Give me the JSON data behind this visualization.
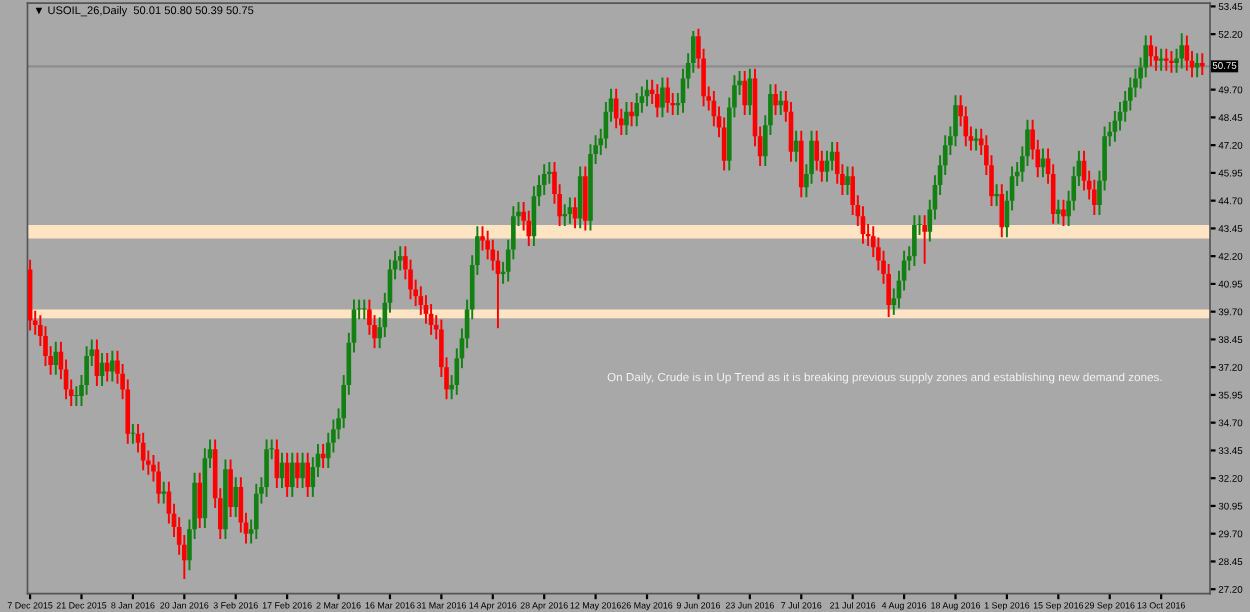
{
  "chart_data": {
    "type": "candlestick",
    "title": "▼ USOIL_26,Daily  50.01 50.80 50.39 50.75",
    "annotations": [
      "On Daily, Crude is in Up Trend as it is breaking previous supply zones and establishing new demand zones."
    ],
    "colors": [
      "#ff0000",
      "#ff0000",
      "#ff0000",
      "#ff0000",
      "#ff0000",
      "#128012",
      "#ff0000",
      "#ff0000",
      "#ff0000",
      "#128012",
      "#128012",
      "#128012",
      "#128012",
      "#ff0000",
      "#128012",
      "#ff0000",
      "#128012",
      "#ff0000",
      "#ff0000",
      "#ff0000",
      "#128012",
      "#ff0000",
      "#ff0000",
      "#ff0000",
      "#ff0000",
      "#ff0000",
      "#128012",
      "#ff0000",
      "#ff0000",
      "#ff0000",
      "#ff0000",
      "#128012",
      "#128012",
      "#ff0000",
      "#128012",
      "#128012",
      "#ff0000",
      "#ff0000",
      "#128012",
      "#ff0000",
      "#128012",
      "#ff0000",
      "#ff0000",
      "#128012",
      "#128012",
      "#128012",
      "#128012",
      "#128012",
      "#ff0000",
      "#128012",
      "#ff0000",
      "#128012",
      "#ff0000",
      "#128012",
      "#ff0000",
      "#128012",
      "#128012",
      "#ff0000",
      "#128012",
      "#128012",
      "#128012",
      "#128012",
      "#128012",
      "#128012",
      "#128012",
      "#128012",
      "#ff0000",
      "#ff0000",
      "#128012",
      "#128012",
      "#128012",
      "#128012",
      "#128012",
      "#ff0000",
      "#ff0000",
      "#ff0000",
      "#ff0000",
      "#ff0000",
      "#ff0000",
      "#ff0000",
      "#ff0000",
      "#ff0000",
      "#128012",
      "#128012",
      "#128012",
      "#128012",
      "#128012",
      "#128012",
      "#ff0000",
      "#ff0000",
      "#ff0000",
      "#ff0000",
      "#128012",
      "#128012",
      "#128012",
      "#128012",
      "#ff0000",
      "#ff0000",
      "#128012",
      "#128012",
      "#128012",
      "#128012",
      "#ff0000",
      "#ff0000",
      "#128012",
      "#128012",
      "#ff0000",
      "#128012",
      "#ff0000",
      "#128012",
      "#128012",
      "#128012",
      "#128012",
      "#128012",
      "#ff0000",
      "#ff0000",
      "#128012",
      "#ff0000",
      "#128012",
      "#128012",
      "#128012",
      "#ff0000",
      "#ff0000",
      "#128012",
      "#ff0000",
      "#ff0000",
      "#128012",
      "#128012",
      "#128012",
      "#128012",
      "#ff0000",
      "#ff0000",
      "#ff0000",
      "#ff0000",
      "#ff0000",
      "#ff0000",
      "#128012",
      "#128012",
      "#128012",
      "#ff0000",
      "#128012",
      "#ff0000",
      "#ff0000",
      "#128012",
      "#128012",
      "#ff0000",
      "#128012",
      "#ff0000",
      "#ff0000",
      "#128012",
      "#ff0000",
      "#128012",
      "#128012",
      "#ff0000",
      "#ff0000",
      "#128012",
      "#128012",
      "#ff0000",
      "#ff0000",
      "#128012",
      "#ff0000",
      "#ff0000",
      "#ff0000",
      "#ff0000",
      "#ff0000",
      "#ff0000",
      "#ff0000",
      "#ff0000",
      "#128012",
      "#128012",
      "#128012",
      "#128012",
      "#128012",
      "#128012",
      "#ff0000",
      "#128012",
      "#128012",
      "#128012",
      "#128012",
      "#128012",
      "#128012",
      "#ff0000",
      "#ff0000",
      "#ff0000",
      "#128012",
      "#ff0000",
      "#ff0000",
      "#ff0000",
      "#128012",
      "#ff0000",
      "#128012",
      "#128012",
      "#128012",
      "#128012",
      "#128012",
      "#ff0000",
      "#ff0000",
      "#128012",
      "#ff0000",
      "#ff0000",
      "#128012",
      "#ff0000",
      "#128012",
      "#128012",
      "#128012",
      "#ff0000",
      "#ff0000",
      "#ff0000",
      "#128012",
      "#128012",
      "#128012",
      "#128012",
      "#128012",
      "#128012",
      "#128012",
      "#128012",
      "#128012",
      "#128012",
      "#ff0000",
      "#ff0000",
      "#128012",
      "#ff0000",
      "#ff0000",
      "#128012",
      "#128012",
      "#ff0000",
      "#ff0000",
      "#128012",
      "#ff0000"
    ],
    "categories": [
      "7 Dec 2015",
      null,
      null,
      null,
      null,
      null,
      null,
      null,
      null,
      null,
      "21 Dec 2015",
      null,
      null,
      null,
      null,
      null,
      null,
      null,
      null,
      null,
      "8 Jan 2016",
      null,
      null,
      null,
      null,
      null,
      null,
      null,
      null,
      null,
      "20 Jan 2016",
      null,
      null,
      null,
      null,
      null,
      null,
      null,
      null,
      null,
      "3 Feb 2016",
      null,
      null,
      null,
      null,
      null,
      null,
      null,
      null,
      null,
      "17 Feb 2016",
      null,
      null,
      null,
      null,
      null,
      null,
      null,
      null,
      null,
      "2 Mar 2016",
      null,
      null,
      null,
      null,
      null,
      null,
      null,
      null,
      null,
      "16 Mar 2016",
      null,
      null,
      null,
      null,
      null,
      null,
      null,
      null,
      null,
      "31 Mar 2016",
      null,
      null,
      null,
      null,
      null,
      null,
      null,
      null,
      null,
      "14 Apr 2016",
      null,
      null,
      null,
      null,
      null,
      null,
      null,
      null,
      null,
      "28 Apr 2016",
      null,
      null,
      null,
      null,
      null,
      null,
      null,
      null,
      null,
      "12 May 2016",
      null,
      null,
      null,
      null,
      null,
      null,
      null,
      null,
      null,
      "26 May 2016",
      null,
      null,
      null,
      null,
      null,
      null,
      null,
      null,
      null,
      "9 Jun 2016",
      null,
      null,
      null,
      null,
      null,
      null,
      null,
      null,
      null,
      "23 Jun 2016",
      null,
      null,
      null,
      null,
      null,
      null,
      null,
      null,
      null,
      "7 Jul 2016",
      null,
      null,
      null,
      null,
      null,
      null,
      null,
      null,
      null,
      "21 Jul 2016",
      null,
      null,
      null,
      null,
      null,
      null,
      null,
      null,
      null,
      "4 Aug 2016",
      null,
      null,
      null,
      null,
      null,
      null,
      null,
      null,
      null,
      "18 Aug 2016",
      null,
      null,
      null,
      null,
      null,
      null,
      null,
      null,
      null,
      "1 Sep 2016",
      null,
      null,
      null,
      null,
      null,
      null,
      null,
      null,
      null,
      "15 Sep 2016",
      null,
      null,
      null,
      null,
      null,
      null,
      null,
      null,
      null,
      "29 Sep 2016",
      null,
      null,
      null,
      null,
      null,
      null,
      null,
      null,
      null,
      "13 Oct 2016",
      null,
      null,
      null,
      null,
      null,
      null,
      null,
      null
    ],
    "ohlc": [
      [
        41.6,
        42.0,
        38.9,
        39.3
      ],
      [
        39.3,
        39.7,
        38.7,
        39.1
      ],
      [
        39.1,
        39.5,
        38.2,
        38.6
      ],
      [
        38.6,
        39.0,
        37.3,
        37.7
      ],
      [
        37.7,
        38.1,
        36.9,
        37.3
      ],
      [
        37.3,
        38.3,
        36.9,
        37.9
      ],
      [
        37.9,
        38.3,
        36.7,
        37.1
      ],
      [
        37.1,
        37.5,
        35.8,
        36.2
      ],
      [
        36.2,
        36.6,
        35.5,
        35.9
      ],
      [
        35.9,
        36.3,
        35.5,
        35.9
      ],
      [
        35.9,
        36.8,
        35.5,
        36.4
      ],
      [
        36.4,
        38.1,
        36.0,
        37.7
      ],
      [
        37.7,
        38.4,
        37.3,
        38.0
      ],
      [
        38.0,
        38.4,
        36.4,
        36.8
      ],
      [
        36.8,
        37.8,
        36.4,
        37.4
      ],
      [
        37.4,
        37.8,
        36.6,
        37.0
      ],
      [
        37.0,
        37.9,
        36.6,
        37.5
      ],
      [
        37.5,
        37.9,
        36.5,
        36.9
      ],
      [
        36.9,
        37.3,
        35.8,
        36.2
      ],
      [
        36.2,
        36.6,
        33.8,
        34.2
      ],
      [
        34.2,
        34.6,
        33.8,
        34.2
      ],
      [
        34.2,
        34.6,
        33.4,
        33.8
      ],
      [
        33.8,
        34.2,
        32.6,
        33.0
      ],
      [
        33.0,
        33.4,
        32.4,
        32.8
      ],
      [
        32.8,
        33.2,
        32.1,
        32.5
      ],
      [
        32.5,
        32.9,
        31.1,
        31.5
      ],
      [
        31.5,
        32.0,
        31.1,
        31.6
      ],
      [
        31.6,
        32.0,
        30.2,
        30.6
      ],
      [
        30.6,
        31.0,
        29.6,
        30.0
      ],
      [
        30.0,
        30.4,
        28.8,
        29.2
      ],
      [
        29.2,
        29.6,
        27.7,
        28.5
      ],
      [
        28.5,
        30.3,
        28.1,
        29.9
      ],
      [
        29.9,
        32.4,
        29.5,
        32.0
      ],
      [
        32.0,
        32.4,
        30.0,
        30.4
      ],
      [
        30.4,
        33.5,
        30.0,
        33.1
      ],
      [
        33.1,
        33.9,
        32.7,
        33.5
      ],
      [
        33.5,
        33.9,
        30.9,
        31.3
      ],
      [
        31.3,
        31.7,
        29.5,
        29.9
      ],
      [
        29.9,
        33.0,
        29.5,
        32.6
      ],
      [
        32.6,
        33.0,
        30.5,
        30.9
      ],
      [
        30.9,
        32.2,
        30.5,
        31.8
      ],
      [
        31.8,
        32.2,
        29.8,
        30.2
      ],
      [
        30.2,
        30.6,
        29.3,
        29.7
      ],
      [
        29.7,
        30.3,
        29.3,
        29.9
      ],
      [
        29.9,
        31.9,
        29.5,
        31.5
      ],
      [
        31.5,
        32.2,
        31.1,
        31.8
      ],
      [
        31.8,
        33.9,
        31.4,
        33.5
      ],
      [
        33.5,
        33.9,
        33.1,
        33.5
      ],
      [
        33.5,
        33.9,
        31.8,
        32.2
      ],
      [
        32.2,
        33.3,
        31.8,
        32.9
      ],
      [
        32.9,
        33.3,
        31.4,
        31.8
      ],
      [
        31.8,
        33.3,
        31.4,
        32.9
      ],
      [
        32.9,
        33.3,
        31.8,
        32.2
      ],
      [
        32.2,
        33.3,
        31.8,
        32.9
      ],
      [
        32.9,
        33.3,
        31.4,
        31.8
      ],
      [
        31.8,
        33.1,
        31.4,
        32.7
      ],
      [
        32.7,
        33.7,
        32.3,
        33.3
      ],
      [
        33.3,
        33.7,
        32.7,
        33.1
      ],
      [
        33.1,
        34.2,
        32.7,
        33.8
      ],
      [
        33.8,
        34.8,
        33.4,
        34.4
      ],
      [
        34.4,
        35.3,
        34.0,
        34.9
      ],
      [
        34.9,
        36.8,
        34.5,
        36.4
      ],
      [
        36.4,
        38.7,
        36.0,
        38.3
      ],
      [
        38.3,
        40.2,
        37.9,
        39.8
      ],
      [
        39.8,
        40.2,
        39.4,
        39.8
      ],
      [
        39.8,
        40.2,
        39.4,
        39.8
      ],
      [
        39.8,
        40.2,
        38.7,
        39.1
      ],
      [
        39.1,
        39.5,
        38.1,
        38.5
      ],
      [
        38.5,
        39.4,
        38.1,
        39.0
      ],
      [
        39.0,
        40.5,
        38.6,
        40.1
      ],
      [
        40.1,
        42.0,
        39.7,
        41.6
      ],
      [
        41.6,
        42.4,
        41.2,
        42.0
      ],
      [
        42.0,
        42.6,
        41.6,
        42.2
      ],
      [
        42.2,
        42.6,
        41.2,
        41.6
      ],
      [
        41.6,
        42.0,
        40.3,
        40.7
      ],
      [
        40.7,
        41.1,
        40.0,
        40.4
      ],
      [
        40.4,
        40.8,
        39.6,
        40.0
      ],
      [
        40.0,
        40.4,
        39.2,
        39.6
      ],
      [
        39.6,
        40.0,
        38.7,
        39.1
      ],
      [
        39.1,
        39.5,
        38.5,
        38.9
      ],
      [
        38.9,
        39.3,
        36.8,
        37.2
      ],
      [
        37.2,
        37.6,
        35.8,
        36.2
      ],
      [
        36.2,
        36.8,
        35.8,
        36.4
      ],
      [
        36.4,
        38.0,
        36.0,
        37.6
      ],
      [
        37.6,
        38.9,
        37.2,
        38.5
      ],
      [
        38.5,
        40.2,
        38.1,
        39.8
      ],
      [
        39.8,
        42.2,
        39.4,
        41.8
      ],
      [
        41.8,
        43.5,
        41.4,
        43.1
      ],
      [
        43.1,
        43.5,
        42.5,
        42.9
      ],
      [
        42.9,
        43.3,
        42.1,
        42.5
      ],
      [
        42.5,
        42.9,
        41.6,
        42.0
      ],
      [
        42.0,
        42.4,
        39.0,
        41.4
      ],
      [
        41.4,
        41.9,
        41.0,
        41.5
      ],
      [
        41.5,
        42.9,
        41.1,
        42.5
      ],
      [
        42.5,
        44.4,
        42.1,
        44.0
      ],
      [
        44.0,
        44.6,
        43.6,
        44.2
      ],
      [
        44.2,
        44.6,
        43.4,
        43.8
      ],
      [
        43.8,
        44.2,
        42.7,
        43.1
      ],
      [
        43.1,
        45.3,
        42.7,
        44.9
      ],
      [
        44.9,
        45.8,
        44.5,
        45.4
      ],
      [
        45.4,
        46.3,
        45.0,
        45.9
      ],
      [
        45.9,
        46.4,
        45.5,
        46.0
      ],
      [
        46.0,
        46.4,
        44.6,
        45.0
      ],
      [
        45.0,
        45.4,
        43.6,
        44.0
      ],
      [
        44.0,
        44.5,
        43.6,
        44.1
      ],
      [
        44.1,
        44.8,
        43.7,
        44.4
      ],
      [
        44.4,
        44.8,
        43.5,
        43.9
      ],
      [
        43.9,
        46.2,
        43.5,
        45.8
      ],
      [
        45.8,
        46.2,
        43.4,
        43.8
      ],
      [
        43.8,
        47.2,
        43.4,
        46.8
      ],
      [
        46.8,
        47.6,
        46.4,
        47.2
      ],
      [
        47.2,
        47.9,
        46.8,
        47.5
      ],
      [
        47.5,
        49.1,
        47.1,
        48.7
      ],
      [
        48.7,
        49.7,
        48.3,
        49.3
      ],
      [
        49.3,
        49.7,
        48.0,
        48.4
      ],
      [
        48.4,
        48.8,
        47.7,
        48.1
      ],
      [
        48.1,
        49.1,
        47.7,
        48.7
      ],
      [
        48.7,
        49.1,
        48.1,
        48.5
      ],
      [
        48.5,
        49.5,
        48.1,
        49.1
      ],
      [
        49.1,
        49.8,
        48.7,
        49.4
      ],
      [
        49.4,
        50.1,
        49.0,
        49.7
      ],
      [
        49.7,
        50.1,
        49.1,
        49.5
      ],
      [
        49.5,
        49.9,
        48.5,
        48.9
      ],
      [
        48.9,
        50.2,
        48.5,
        49.8
      ],
      [
        49.8,
        50.2,
        48.7,
        49.1
      ],
      [
        49.1,
        49.5,
        48.6,
        49.0
      ],
      [
        49.0,
        49.5,
        48.6,
        49.1
      ],
      [
        49.1,
        50.6,
        48.7,
        50.2
      ],
      [
        50.2,
        51.3,
        49.8,
        50.9
      ],
      [
        50.9,
        52.3,
        50.5,
        52.1
      ],
      [
        52.1,
        52.4,
        50.7,
        51.1
      ],
      [
        51.1,
        51.5,
        49.0,
        49.4
      ],
      [
        49.4,
        49.8,
        48.8,
        49.2
      ],
      [
        49.2,
        49.6,
        48.1,
        48.5
      ],
      [
        48.5,
        48.9,
        47.6,
        48.0
      ],
      [
        48.0,
        48.4,
        46.1,
        46.5
      ],
      [
        46.5,
        49.3,
        46.1,
        48.9
      ],
      [
        48.9,
        50.3,
        48.5,
        49.9
      ],
      [
        49.9,
        50.5,
        49.5,
        50.1
      ],
      [
        50.1,
        50.5,
        48.6,
        49.0
      ],
      [
        49.0,
        50.6,
        48.6,
        50.2
      ],
      [
        50.2,
        50.6,
        47.2,
        47.6
      ],
      [
        47.6,
        48.0,
        46.3,
        46.7
      ],
      [
        46.7,
        48.5,
        46.3,
        48.1
      ],
      [
        48.1,
        49.9,
        47.7,
        49.5
      ],
      [
        49.5,
        49.9,
        48.6,
        49.0
      ],
      [
        49.0,
        49.6,
        48.6,
        49.2
      ],
      [
        49.2,
        49.6,
        48.3,
        48.7
      ],
      [
        48.7,
        49.1,
        46.5,
        46.9
      ],
      [
        46.9,
        47.8,
        46.5,
        47.4
      ],
      [
        47.4,
        47.8,
        44.9,
        45.3
      ],
      [
        45.3,
        46.3,
        44.9,
        45.9
      ],
      [
        45.9,
        47.8,
        45.5,
        47.4
      ],
      [
        47.4,
        47.8,
        46.1,
        46.5
      ],
      [
        46.5,
        46.9,
        45.6,
        46.0
      ],
      [
        46.0,
        46.9,
        45.6,
        46.5
      ],
      [
        46.5,
        47.3,
        46.1,
        46.9
      ],
      [
        46.9,
        47.3,
        45.5,
        45.9
      ],
      [
        45.9,
        46.3,
        45.0,
        45.4
      ],
      [
        45.4,
        46.2,
        45.0,
        45.8
      ],
      [
        45.8,
        46.2,
        44.1,
        44.5
      ],
      [
        44.5,
        44.9,
        43.6,
        44.0
      ],
      [
        44.0,
        44.4,
        42.8,
        43.2
      ],
      [
        43.2,
        43.6,
        42.7,
        43.1
      ],
      [
        43.1,
        43.5,
        42.2,
        42.6
      ],
      [
        42.6,
        43.0,
        41.6,
        42.0
      ],
      [
        42.0,
        42.4,
        41.0,
        41.4
      ],
      [
        41.4,
        41.8,
        39.5,
        40.0
      ],
      [
        40.0,
        40.7,
        39.6,
        40.3
      ],
      [
        40.3,
        41.5,
        39.9,
        41.1
      ],
      [
        41.1,
        42.4,
        40.7,
        42.0
      ],
      [
        42.0,
        42.6,
        41.6,
        42.2
      ],
      [
        42.2,
        44.0,
        41.8,
        43.6
      ],
      [
        43.6,
        44.0,
        43.2,
        43.6
      ],
      [
        43.6,
        44.0,
        41.9,
        43.3
      ],
      [
        43.3,
        44.7,
        42.9,
        44.3
      ],
      [
        44.3,
        45.8,
        43.9,
        45.4
      ],
      [
        45.4,
        46.7,
        45.0,
        46.3
      ],
      [
        46.3,
        47.6,
        45.9,
        47.2
      ],
      [
        47.2,
        48.0,
        46.8,
        47.6
      ],
      [
        47.6,
        49.4,
        47.2,
        49.0
      ],
      [
        49.0,
        49.4,
        48.1,
        48.5
      ],
      [
        48.5,
        48.9,
        47.2,
        47.6
      ],
      [
        47.6,
        48.0,
        47.0,
        47.4
      ],
      [
        47.4,
        47.9,
        47.0,
        47.5
      ],
      [
        47.5,
        47.9,
        46.8,
        47.2
      ],
      [
        47.2,
        47.6,
        45.9,
        46.3
      ],
      [
        46.3,
        46.7,
        44.5,
        44.9
      ],
      [
        44.9,
        45.4,
        44.5,
        45.0
      ],
      [
        45.0,
        45.4,
        43.1,
        43.5
      ],
      [
        43.5,
        45.1,
        43.1,
        44.7
      ],
      [
        44.7,
        46.2,
        44.3,
        45.8
      ],
      [
        45.8,
        46.4,
        45.4,
        46.0
      ],
      [
        46.0,
        47.1,
        45.6,
        46.7
      ],
      [
        46.7,
        48.3,
        46.3,
        47.9
      ],
      [
        47.9,
        48.3,
        46.6,
        47.0
      ],
      [
        47.0,
        47.4,
        45.8,
        46.2
      ],
      [
        46.2,
        47.0,
        45.8,
        46.6
      ],
      [
        46.6,
        47.0,
        45.5,
        45.9
      ],
      [
        45.9,
        46.3,
        43.7,
        44.1
      ],
      [
        44.1,
        44.7,
        43.7,
        44.3
      ],
      [
        44.3,
        44.7,
        43.6,
        44.0
      ],
      [
        44.0,
        45.1,
        43.6,
        44.7
      ],
      [
        44.7,
        46.2,
        44.3,
        45.8
      ],
      [
        45.8,
        46.9,
        45.4,
        46.5
      ],
      [
        46.5,
        46.9,
        45.2,
        45.6
      ],
      [
        45.6,
        46.0,
        44.8,
        45.2
      ],
      [
        45.2,
        45.6,
        44.1,
        44.5
      ],
      [
        44.5,
        46.0,
        44.1,
        45.6
      ],
      [
        45.6,
        48.0,
        45.2,
        47.6
      ],
      [
        47.6,
        48.2,
        47.2,
        47.8
      ],
      [
        47.8,
        48.7,
        47.4,
        48.3
      ],
      [
        48.3,
        49.1,
        47.9,
        48.7
      ],
      [
        48.7,
        49.6,
        48.3,
        49.2
      ],
      [
        49.2,
        50.2,
        48.8,
        49.8
      ],
      [
        49.8,
        50.6,
        49.4,
        50.2
      ],
      [
        50.2,
        51.1,
        49.8,
        50.7
      ],
      [
        50.7,
        52.1,
        50.3,
        51.7
      ],
      [
        51.7,
        52.1,
        50.8,
        51.2
      ],
      [
        51.2,
        51.6,
        50.6,
        51.0
      ],
      [
        51.0,
        51.5,
        50.6,
        51.1
      ],
      [
        51.1,
        51.5,
        50.6,
        51.0
      ],
      [
        51.0,
        51.4,
        50.5,
        50.9
      ],
      [
        50.9,
        51.5,
        50.5,
        51.1
      ],
      [
        51.1,
        52.2,
        50.7,
        51.7
      ],
      [
        51.7,
        52.1,
        50.6,
        51.0
      ],
      [
        51.0,
        51.4,
        50.3,
        50.7
      ],
      [
        50.7,
        51.3,
        50.3,
        50.9
      ],
      [
        50.9,
        51.3,
        50.4,
        50.75
      ]
    ],
    "ylim": [
      27.0,
      53.6
    ],
    "yticks": [
      {
        "value": 53.45,
        "label": "53.45"
      },
      {
        "value": 52.2,
        "label": "52.20"
      },
      {
        "value": 49.7,
        "label": "49.70"
      },
      {
        "value": 48.45,
        "label": "48.45"
      },
      {
        "value": 47.2,
        "label": "47.20"
      },
      {
        "value": 45.95,
        "label": "45.95"
      },
      {
        "value": 44.7,
        "label": "44.70"
      },
      {
        "value": 43.45,
        "label": "43.45"
      },
      {
        "value": 42.2,
        "label": "42.20"
      },
      {
        "value": 40.95,
        "label": "40.95"
      },
      {
        "value": 39.7,
        "label": "39.70"
      },
      {
        "value": 38.45,
        "label": "38.45"
      },
      {
        "value": 37.2,
        "label": "37.20"
      },
      {
        "value": 35.95,
        "label": "35.95"
      },
      {
        "value": 34.7,
        "label": "34.70"
      },
      {
        "value": 33.45,
        "label": "33.45"
      },
      {
        "value": 32.2,
        "label": "32.20"
      },
      {
        "value": 30.95,
        "label": "30.95"
      },
      {
        "value": 29.7,
        "label": "29.70"
      },
      {
        "value": 28.45,
        "label": "28.45"
      },
      {
        "value": 27.2,
        "label": "27.20"
      }
    ],
    "ref_lines": [
      {
        "axis": "y",
        "value": 50.75,
        "label": "50.75",
        "color": "#8c8c8c"
      }
    ],
    "bands": [
      {
        "axis": "y",
        "from": 43.0,
        "to": 43.6,
        "color": "#ffe4c4"
      },
      {
        "axis": "y",
        "from": 39.4,
        "to": 39.8,
        "color": "#ffe4c4"
      }
    ],
    "grid": false,
    "legend": false
  }
}
